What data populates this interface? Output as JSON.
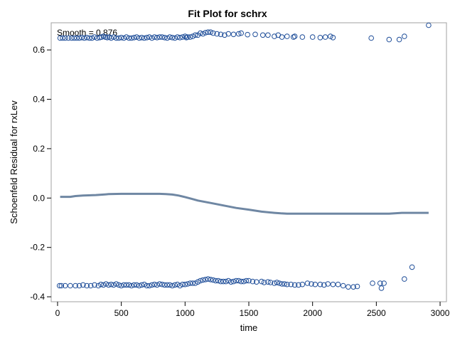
{
  "chart_data": {
    "type": "scatter",
    "title": "Fit Plot for schrx",
    "xlabel": "time",
    "ylabel": "Schoenfeld Residual for rxLev",
    "annotation": "Smooth = 0.876",
    "xlim": [
      -50,
      3050
    ],
    "ylim": [
      -0.42,
      0.71
    ],
    "x_ticks": [
      0,
      500,
      1000,
      1500,
      2000,
      2500,
      3000
    ],
    "x_tick_labels": [
      "0",
      "500",
      "1000",
      "1500",
      "2000",
      "2500",
      "3000"
    ],
    "y_ticks": [
      -0.4,
      -0.2,
      0.0,
      0.2,
      0.4,
      0.6
    ],
    "y_tick_labels": [
      "-0.4",
      "-0.2",
      "0.0",
      "0.2",
      "0.4",
      "0.6"
    ],
    "grid": false,
    "legend": "none",
    "colors": {
      "points": "#1f4e99",
      "smooth": "#6f87a3",
      "frame": "#a0a0a0"
    },
    "series": [
      {
        "kind": "points",
        "x": [
          20,
          40,
          60,
          85,
          110,
          130,
          150,
          170,
          190,
          210,
          230,
          250,
          270,
          290,
          310,
          330,
          345,
          360,
          375,
          390,
          405,
          420,
          440,
          460,
          480,
          500,
          520,
          540,
          560,
          580,
          600,
          620,
          640,
          660,
          680,
          700,
          720,
          740,
          760,
          780,
          800,
          820,
          840,
          860,
          880,
          900,
          920,
          940,
          960,
          980,
          1000,
          1010,
          1020,
          1040,
          1060,
          1080,
          1100,
          1120,
          1140,
          1160,
          1180,
          1200,
          1220,
          1250,
          1280,
          1310,
          1340,
          1380,
          1420,
          1440,
          1490,
          1550,
          1610,
          1650,
          1700,
          1730,
          1760,
          1800,
          1850,
          1860,
          1920,
          2000,
          2060,
          2100,
          2140,
          2160,
          2460,
          2600,
          2680,
          2720,
          2910
        ],
        "y": [
          0.648,
          0.648,
          0.648,
          0.648,
          0.648,
          0.648,
          0.648,
          0.648,
          0.65,
          0.648,
          0.65,
          0.648,
          0.648,
          0.652,
          0.648,
          0.65,
          0.652,
          0.655,
          0.652,
          0.65,
          0.652,
          0.648,
          0.652,
          0.648,
          0.648,
          0.65,
          0.648,
          0.652,
          0.648,
          0.648,
          0.65,
          0.652,
          0.648,
          0.65,
          0.648,
          0.65,
          0.652,
          0.648,
          0.652,
          0.65,
          0.652,
          0.652,
          0.65,
          0.648,
          0.652,
          0.65,
          0.648,
          0.652,
          0.65,
          0.652,
          0.655,
          0.65,
          0.652,
          0.652,
          0.655,
          0.66,
          0.66,
          0.668,
          0.665,
          0.67,
          0.672,
          0.672,
          0.668,
          0.665,
          0.663,
          0.66,
          0.665,
          0.663,
          0.665,
          0.668,
          0.662,
          0.663,
          0.66,
          0.66,
          0.655,
          0.66,
          0.652,
          0.655,
          0.652,
          0.655,
          0.652,
          0.652,
          0.65,
          0.652,
          0.655,
          0.65,
          0.648,
          0.642,
          0.642,
          0.655,
          0.7
        ]
      },
      {
        "kind": "points",
        "x": [
          15,
          30,
          60,
          100,
          140,
          170,
          200,
          230,
          260,
          290,
          320,
          340,
          360,
          380,
          400,
          420,
          440,
          460,
          480,
          500,
          520,
          540,
          560,
          580,
          600,
          620,
          640,
          660,
          680,
          700,
          720,
          740,
          760,
          780,
          800,
          820,
          840,
          860,
          880,
          900,
          920,
          940,
          960,
          980,
          1000,
          1020,
          1040,
          1060,
          1080,
          1100,
          1120,
          1140,
          1160,
          1180,
          1200,
          1220,
          1240,
          1260,
          1280,
          1300,
          1320,
          1340,
          1360,
          1380,
          1400,
          1420,
          1440,
          1460,
          1480,
          1500,
          1530,
          1560,
          1600,
          1620,
          1650,
          1670,
          1700,
          1720,
          1740,
          1760,
          1780,
          1800,
          1830,
          1860,
          1890,
          1920,
          1960,
          1990,
          2020,
          2060,
          2090,
          2120,
          2160,
          2200,
          2240,
          2280,
          2320,
          2350,
          2470,
          2530,
          2540,
          2560,
          2720,
          2780
        ],
        "y": [
          -0.355,
          -0.355,
          -0.355,
          -0.355,
          -0.355,
          -0.355,
          -0.352,
          -0.355,
          -0.355,
          -0.352,
          -0.355,
          -0.35,
          -0.352,
          -0.348,
          -0.352,
          -0.35,
          -0.352,
          -0.348,
          -0.352,
          -0.355,
          -0.352,
          -0.352,
          -0.352,
          -0.355,
          -0.352,
          -0.352,
          -0.355,
          -0.352,
          -0.35,
          -0.355,
          -0.355,
          -0.352,
          -0.35,
          -0.352,
          -0.348,
          -0.35,
          -0.352,
          -0.352,
          -0.352,
          -0.355,
          -0.352,
          -0.35,
          -0.355,
          -0.35,
          -0.35,
          -0.348,
          -0.345,
          -0.345,
          -0.345,
          -0.34,
          -0.335,
          -0.332,
          -0.33,
          -0.328,
          -0.33,
          -0.332,
          -0.335,
          -0.335,
          -0.338,
          -0.338,
          -0.338,
          -0.335,
          -0.34,
          -0.338,
          -0.335,
          -0.335,
          -0.338,
          -0.338,
          -0.335,
          -0.335,
          -0.338,
          -0.34,
          -0.338,
          -0.342,
          -0.34,
          -0.342,
          -0.345,
          -0.342,
          -0.345,
          -0.348,
          -0.348,
          -0.35,
          -0.35,
          -0.352,
          -0.352,
          -0.35,
          -0.345,
          -0.348,
          -0.35,
          -0.35,
          -0.352,
          -0.348,
          -0.35,
          -0.35,
          -0.355,
          -0.36,
          -0.36,
          -0.358,
          -0.345,
          -0.345,
          -0.365,
          -0.345,
          -0.328,
          -0.28
        ]
      },
      {
        "kind": "line",
        "x": [
          20,
          100,
          140,
          200,
          300,
          380,
          400,
          500,
          600,
          700,
          800,
          850,
          900,
          950,
          1000,
          1050,
          1100,
          1200,
          1300,
          1400,
          1500,
          1600,
          1700,
          1750,
          1800,
          2000,
          2200,
          2400,
          2600,
          2700,
          2910
        ],
        "y": [
          0.005,
          0.005,
          0.008,
          0.01,
          0.012,
          0.015,
          0.016,
          0.017,
          0.017,
          0.017,
          0.017,
          0.016,
          0.014,
          0.01,
          0.004,
          -0.003,
          -0.01,
          -0.02,
          -0.03,
          -0.04,
          -0.047,
          -0.055,
          -0.06,
          -0.062,
          -0.063,
          -0.063,
          -0.063,
          -0.063,
          -0.063,
          -0.06,
          -0.06
        ]
      }
    ]
  }
}
